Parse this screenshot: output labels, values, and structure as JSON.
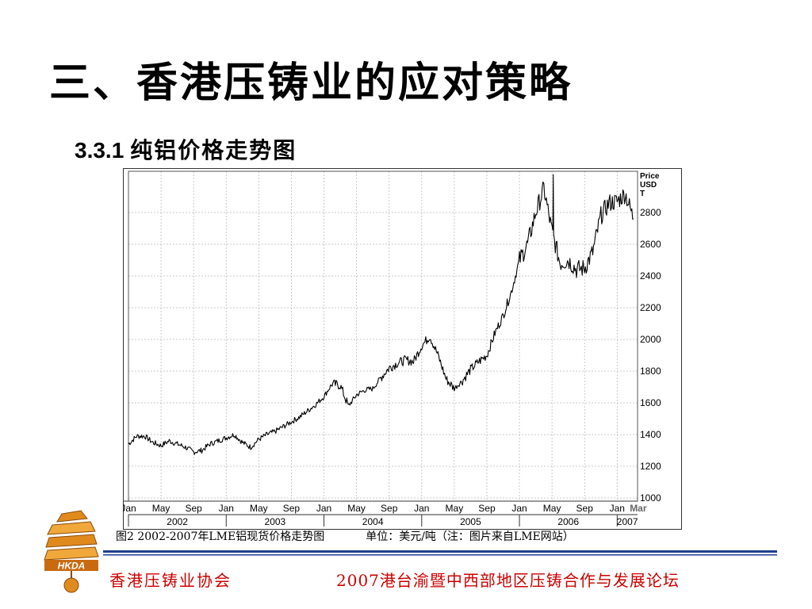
{
  "slide": {
    "title": "三、香港压铸业的应对策略",
    "section_number": "3.3.1",
    "section_title": "纯铝价格走势图"
  },
  "caption": {
    "figure": "图2 2002-2007年LME铝现货价格走势图",
    "unit": "单位：美元/吨（注：图片来自LME网站）"
  },
  "footer": {
    "left": "香港压铸业协会",
    "right": "2007港台渝暨中西部地区压铸合作与发展论坛"
  },
  "logo": {
    "icon": "pagoda-logo-icon",
    "text": "HKDA"
  },
  "colors": {
    "accent_red": "#cc0000",
    "rule_blue": "#1f3f8f",
    "logo_orange": "#e08a1e"
  },
  "chart_data": {
    "type": "line",
    "price_label": [
      "Price",
      "USD",
      "T"
    ],
    "x_tick_labels": [
      "Jan",
      "May",
      "Sep",
      "Jan",
      "May",
      "Sep",
      "Jan",
      "May",
      "Sep",
      "Jan",
      "May",
      "Sep",
      "Jan",
      "May",
      "Sep",
      "Jan",
      "Mar"
    ],
    "year_labels": [
      "2002",
      "2003",
      "2004",
      "2005",
      "2006",
      "2007"
    ],
    "y_ticks": [
      1000,
      1200,
      1400,
      1600,
      1800,
      2000,
      2200,
      2400,
      2600,
      2800
    ],
    "ylim": [
      980,
      3060
    ],
    "xlim": [
      0,
      62.5
    ],
    "grid": true,
    "series": [
      {
        "x": [
          0,
          1,
          2,
          3,
          4,
          5,
          6,
          7,
          8,
          9,
          10,
          11,
          12,
          13,
          14,
          15,
          16,
          17,
          18,
          19,
          20,
          21,
          22,
          23,
          24,
          25,
          26,
          27,
          28,
          29,
          30,
          31,
          32,
          33,
          34,
          35,
          36,
          37,
          38,
          39,
          40,
          41,
          42,
          43,
          44,
          45,
          46,
          47,
          48,
          49,
          50,
          51,
          52,
          53,
          54,
          55,
          56,
          57,
          58,
          59,
          60,
          61,
          62
        ],
        "y": [
          1340,
          1390,
          1390,
          1350,
          1330,
          1360,
          1340,
          1320,
          1290,
          1300,
          1340,
          1360,
          1380,
          1400,
          1350,
          1320,
          1370,
          1400,
          1420,
          1450,
          1480,
          1510,
          1550,
          1590,
          1640,
          1720,
          1710,
          1580,
          1650,
          1680,
          1690,
          1760,
          1820,
          1850,
          1870,
          1860,
          1960,
          2020,
          1900,
          1750,
          1690,
          1740,
          1810,
          1860,
          1900,
          2040,
          2150,
          2300,
          2500,
          2600,
          2800,
          2950,
          2680,
          2480,
          2500,
          2440,
          2450,
          2550,
          2780,
          2860,
          2870,
          2920,
          2760
        ]
      }
    ]
  }
}
